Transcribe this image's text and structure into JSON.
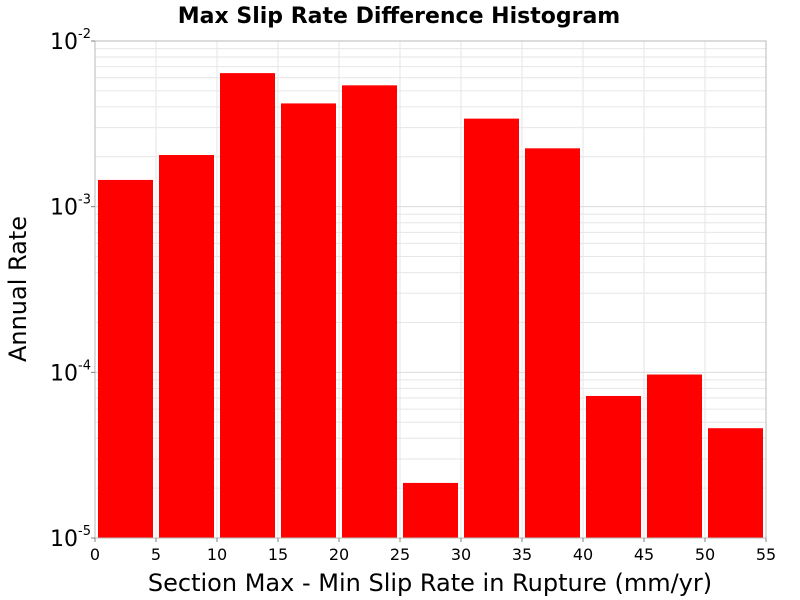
{
  "chart_data": {
    "type": "bar",
    "title": "Max Slip Rate Difference Histogram",
    "xlabel": "Section Max - Min Slip Rate in Rupture (mm/yr)",
    "ylabel": "Annual Rate",
    "y_scale": "log",
    "xlim": [
      0,
      55
    ],
    "ylim": [
      1e-05,
      0.01
    ],
    "x_ticks": [
      "0",
      "5",
      "10",
      "15",
      "20",
      "25",
      "30",
      "35",
      "40",
      "45",
      "50",
      "55"
    ],
    "y_ticks": [
      {
        "base": "10",
        "exp": "-2"
      },
      {
        "base": "10",
        "exp": "-3"
      },
      {
        "base": "10",
        "exp": "-4"
      },
      {
        "base": "10",
        "exp": "-5"
      }
    ],
    "bin_width": 5,
    "bin_starts": [
      0,
      5,
      10,
      15,
      20,
      25,
      30,
      35,
      40,
      45,
      50
    ],
    "values": [
      0.00145,
      0.00205,
      0.0064,
      0.0042,
      0.0054,
      2.15e-05,
      0.0034,
      0.00225,
      7.2e-05,
      9.7e-05,
      4.6e-05
    ],
    "bar_color": "#ff0000",
    "grid": true
  }
}
